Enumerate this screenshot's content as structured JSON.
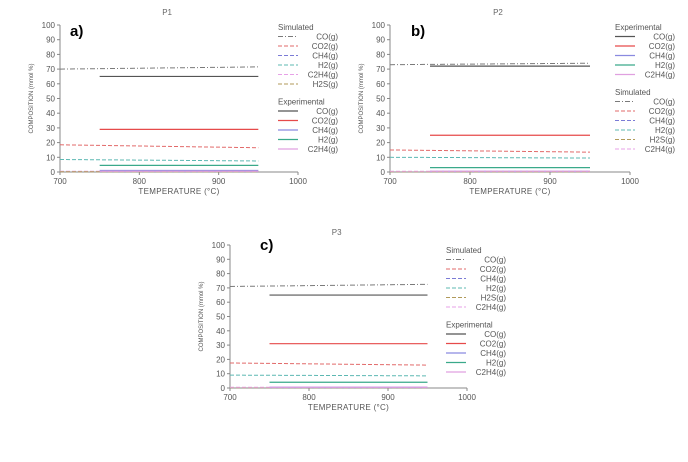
{
  "chart_data": [
    {
      "type": "line",
      "panel_label": "a)",
      "title": "P1",
      "xlabel": "TEMPERATURE (°C)",
      "ylabel": "COMPOSITION (mmol %)",
      "xlim": [
        700,
        1000
      ],
      "ylim": [
        0,
        100
      ],
      "xticks": [
        700,
        800,
        900,
        1000
      ],
      "yticks": [
        0,
        10,
        20,
        30,
        40,
        50,
        60,
        70,
        80,
        90,
        100
      ],
      "grid": false,
      "legend_placement": "right",
      "legend_order": [
        "Simulated",
        "Experimental"
      ],
      "groups": [
        {
          "name": "Simulated",
          "series": [
            {
              "name": "CO(g)",
              "color": "#7a7a7a",
              "style": "dashdot",
              "x": [
                700,
                950
              ],
              "y": [
                70,
                71.5
              ]
            },
            {
              "name": "CO2(g)",
              "color": "#e26a6a",
              "style": "dash",
              "x": [
                700,
                950
              ],
              "y": [
                18.5,
                16.5
              ]
            },
            {
              "name": "CH4(g)",
              "color": "#7b7bd6",
              "style": "dash",
              "x": [
                700,
                950
              ],
              "y": [
                0.3,
                0.3
              ]
            },
            {
              "name": "H2(g)",
              "color": "#5cb8b2",
              "style": "dash",
              "x": [
                700,
                950
              ],
              "y": [
                8.5,
                7.5
              ]
            },
            {
              "name": "C2H4(g)",
              "color": "#e7a1e7",
              "style": "dash",
              "x": [
                700,
                950
              ],
              "y": [
                0.5,
                0.5
              ]
            },
            {
              "name": "H2S(g)",
              "color": "#b09a5a",
              "style": "dash",
              "x": [
                700,
                950
              ],
              "y": [
                0.2,
                0.2
              ]
            }
          ]
        },
        {
          "name": "Experimental",
          "series": [
            {
              "name": "CO(g)",
              "color": "#555555",
              "style": "solid",
              "x": [
                750,
                950
              ],
              "y": [
                65,
                65
              ]
            },
            {
              "name": "CO2(g)",
              "color": "#e64a4a",
              "style": "solid",
              "x": [
                750,
                950
              ],
              "y": [
                29,
                29
              ]
            },
            {
              "name": "CH4(g)",
              "color": "#8a8ae0",
              "style": "solid",
              "x": [
                750,
                950
              ],
              "y": [
                1,
                1
              ]
            },
            {
              "name": "H2(g)",
              "color": "#3aa98a",
              "style": "solid",
              "x": [
                750,
                950
              ],
              "y": [
                4.5,
                4.5
              ]
            },
            {
              "name": "C2H4(g)",
              "color": "#e0a0e0",
              "style": "solid",
              "x": [
                750,
                950
              ],
              "y": [
                0.5,
                0.5
              ]
            }
          ]
        }
      ]
    },
    {
      "type": "line",
      "panel_label": "b)",
      "title": "P2",
      "xlabel": "TEMPERATURE (°C)",
      "ylabel": "COMPOSITION (mmol %)",
      "xlim": [
        700,
        1000
      ],
      "ylim": [
        0,
        100
      ],
      "xticks": [
        700,
        800,
        900,
        1000
      ],
      "yticks": [
        0,
        10,
        20,
        30,
        40,
        50,
        60,
        70,
        80,
        90,
        100
      ],
      "grid": false,
      "legend_placement": "right",
      "legend_order": [
        "Experimental",
        "Simulated"
      ],
      "groups": [
        {
          "name": "Experimental",
          "series": [
            {
              "name": "CO(g)",
              "color": "#555555",
              "style": "solid",
              "x": [
                750,
                950
              ],
              "y": [
                72,
                72
              ]
            },
            {
              "name": "CO2(g)",
              "color": "#e64a4a",
              "style": "solid",
              "x": [
                750,
                950
              ],
              "y": [
                25,
                25
              ]
            },
            {
              "name": "CH4(g)",
              "color": "#8a8ae0",
              "style": "solid",
              "x": [
                750,
                950
              ],
              "y": [
                0.5,
                0.5
              ]
            },
            {
              "name": "H2(g)",
              "color": "#3aa98a",
              "style": "solid",
              "x": [
                750,
                950
              ],
              "y": [
                3,
                3
              ]
            },
            {
              "name": "C2H4(g)",
              "color": "#e0a0e0",
              "style": "solid",
              "x": [
                750,
                950
              ],
              "y": [
                0.5,
                0.5
              ]
            }
          ]
        },
        {
          "name": "Simulated",
          "series": [
            {
              "name": "CO(g)",
              "color": "#7a7a7a",
              "style": "dashdot",
              "x": [
                700,
                950
              ],
              "y": [
                73,
                74
              ]
            },
            {
              "name": "CO2(g)",
              "color": "#e26a6a",
              "style": "dash",
              "x": [
                700,
                950
              ],
              "y": [
                15,
                13.5
              ]
            },
            {
              "name": "CH4(g)",
              "color": "#7b7bd6",
              "style": "dash",
              "x": [
                700,
                950
              ],
              "y": [
                0.3,
                0.3
              ]
            },
            {
              "name": "H2(g)",
              "color": "#5cb8b2",
              "style": "dash",
              "x": [
                700,
                950
              ],
              "y": [
                10,
                9.5
              ]
            },
            {
              "name": "H2S(g)",
              "color": "#b09a5a",
              "style": "dash",
              "x": [
                700,
                950
              ],
              "y": [
                0.2,
                0.2
              ]
            },
            {
              "name": "C2H4(g)",
              "color": "#e7a1e7",
              "style": "dash",
              "x": [
                700,
                950
              ],
              "y": [
                0.5,
                0.5
              ]
            }
          ]
        }
      ]
    },
    {
      "type": "line",
      "panel_label": "c)",
      "title": "P3",
      "xlabel": "TEMPERATURE (°C)",
      "ylabel": "COMPOSITION (mmol %)",
      "xlim": [
        700,
        1000
      ],
      "ylim": [
        0,
        100
      ],
      "xticks": [
        700,
        800,
        900,
        1000
      ],
      "yticks": [
        0,
        10,
        20,
        30,
        40,
        50,
        60,
        70,
        80,
        90,
        100
      ],
      "grid": false,
      "legend_placement": "right",
      "legend_order": [
        "Simulated",
        "Experimental"
      ],
      "groups": [
        {
          "name": "Simulated",
          "series": [
            {
              "name": "CO(g)",
              "color": "#7a7a7a",
              "style": "dashdot",
              "x": [
                700,
                950
              ],
              "y": [
                71,
                72.5
              ]
            },
            {
              "name": "CO2(g)",
              "color": "#e26a6a",
              "style": "dash",
              "x": [
                700,
                950
              ],
              "y": [
                17.5,
                16
              ]
            },
            {
              "name": "CH4(g)",
              "color": "#7b7bd6",
              "style": "dash",
              "x": [
                700,
                950
              ],
              "y": [
                0.3,
                0.3
              ]
            },
            {
              "name": "H2(g)",
              "color": "#5cb8b2",
              "style": "dash",
              "x": [
                700,
                950
              ],
              "y": [
                9,
                8.5
              ]
            },
            {
              "name": "H2S(g)",
              "color": "#b09a5a",
              "style": "dash",
              "x": [
                700,
                950
              ],
              "y": [
                0.2,
                0.2
              ]
            },
            {
              "name": "C2H4(g)",
              "color": "#e7a1e7",
              "style": "dash",
              "x": [
                700,
                950
              ],
              "y": [
                0.5,
                0.5
              ]
            }
          ]
        },
        {
          "name": "Experimental",
          "series": [
            {
              "name": "CO(g)",
              "color": "#555555",
              "style": "solid",
              "x": [
                750,
                950
              ],
              "y": [
                65,
                65
              ]
            },
            {
              "name": "CO2(g)",
              "color": "#e64a4a",
              "style": "solid",
              "x": [
                750,
                950
              ],
              "y": [
                31,
                31
              ]
            },
            {
              "name": "CH4(g)",
              "color": "#8a8ae0",
              "style": "solid",
              "x": [
                750,
                950
              ],
              "y": [
                0.5,
                0.5
              ]
            },
            {
              "name": "H2(g)",
              "color": "#3aa98a",
              "style": "solid",
              "x": [
                750,
                950
              ],
              "y": [
                4,
                4
              ]
            },
            {
              "name": "C2H4(g)",
              "color": "#e0a0e0",
              "style": "solid",
              "x": [
                750,
                950
              ],
              "y": [
                0.5,
                0.5
              ]
            }
          ]
        }
      ]
    }
  ]
}
